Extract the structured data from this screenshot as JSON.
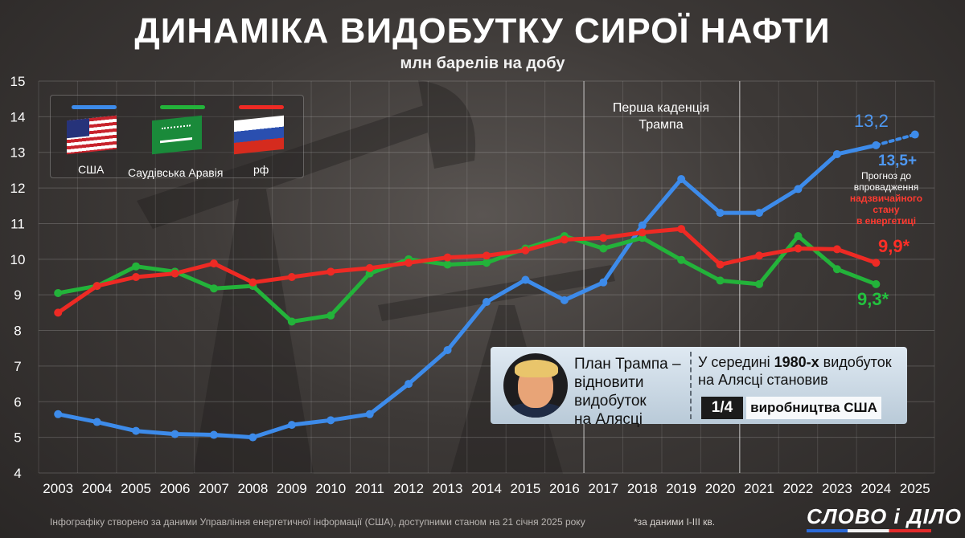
{
  "header": {
    "title": "ДИНАМІКА ВИДОБУТКУ СИРОЇ НАФТИ",
    "subtitle": "млн барелів на добу"
  },
  "chart_data": {
    "type": "line",
    "x": [
      "2003",
      "2004",
      "2005",
      "2006",
      "2007",
      "2008",
      "2009",
      "2010",
      "2011",
      "2012",
      "2013",
      "2014",
      "2015",
      "2016",
      "2017",
      "2018",
      "2019",
      "2020",
      "2021",
      "2022",
      "2023",
      "2024",
      "2025"
    ],
    "ylim": [
      4,
      15
    ],
    "yticks": [
      "4",
      "5",
      "6",
      "7",
      "8",
      "9",
      "10",
      "11",
      "12",
      "13",
      "14",
      "15"
    ],
    "grid": true,
    "legend_position": "top-left",
    "series": [
      {
        "name": "США",
        "color": "#3d8bea",
        "values": [
          5.65,
          5.43,
          5.18,
          5.09,
          5.07,
          5.0,
          5.35,
          5.48,
          5.65,
          6.5,
          7.45,
          8.8,
          9.42,
          8.85,
          9.35,
          10.95,
          12.25,
          11.3,
          11.3,
          11.97,
          12.95,
          13.2,
          null
        ],
        "forecast": {
          "from_x": "2024",
          "to_x": "2025",
          "to_value": 13.5
        }
      },
      {
        "name": "Саудівська Аравія",
        "color": "#23b33a",
        "values": [
          9.05,
          9.25,
          9.8,
          9.65,
          9.18,
          9.25,
          8.25,
          8.42,
          9.6,
          10.0,
          9.85,
          9.9,
          10.3,
          10.65,
          10.3,
          10.6,
          9.98,
          9.4,
          9.3,
          10.65,
          9.72,
          9.3,
          null
        ]
      },
      {
        "name": "рф",
        "color": "#ee2a24",
        "values": [
          8.5,
          9.25,
          9.5,
          9.6,
          9.88,
          9.35,
          9.5,
          9.65,
          9.75,
          9.9,
          10.05,
          10.1,
          10.25,
          10.55,
          10.6,
          10.75,
          10.85,
          9.85,
          10.1,
          10.3,
          10.28,
          9.9,
          null
        ]
      }
    ],
    "annotations": {
      "trump_term": "Перша каденція\nТрампа",
      "usa_2024_label": "13,2",
      "usa_forecast_label": "13,5+",
      "forecast_note_1": "Прогноз до",
      "forecast_note_2": "впровадження",
      "forecast_note_3": "надзвичайного",
      "forecast_note_4": "стану",
      "forecast_note_5": "в енергетиці",
      "rf_label": "9,9*",
      "saudi_label": "9,3*"
    }
  },
  "callout": {
    "left_line_1": "План Трампа –",
    "left_line_2": "відновити",
    "left_line_3": "видобуток",
    "left_line_4": "на Алясці",
    "right_line_1_a": "У середині ",
    "right_line_1_b": "1980-х",
    "right_line_1_c": " видобуток",
    "right_line_2": "на Алясці становив",
    "fraction": "1/4",
    "fraction_note": "виробництва США"
  },
  "footer": {
    "source": "Інфографіку створено за даними Управління енергетичної інформації (США), доступними станом на 21 січня 2025 року",
    "note": "*за даними I-III кв.",
    "logo": "СЛОВО і ДІЛО"
  }
}
